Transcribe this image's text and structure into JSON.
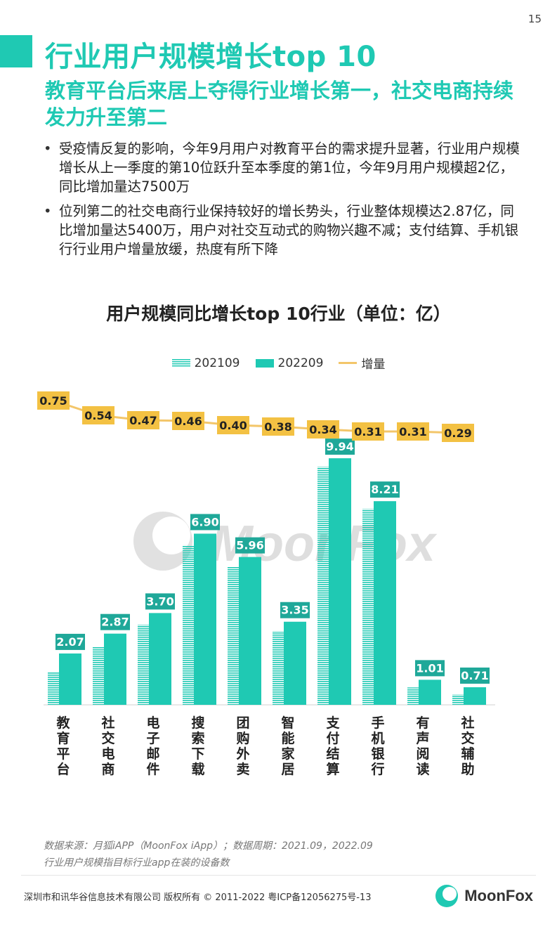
{
  "page_number": "15",
  "title": "行业用户规模增长top 10",
  "subtitle": "教育平台后来居上夺得行业增长第一，社交电商持续发力升至第二",
  "bullets": [
    "受疫情反复的影响，今年9月用户对教育平台的需求提升显著，行业用户规模增长从上一季度的第10位跃升至本季度的第1位，今年9月用户规模超2亿，同比增加量达7500万",
    "位列第二的社交电商行业保持较好的增长势头，行业整体规模达2.87亿，同比增加量达5400万，用户对社交互动式的购物兴趣不减；支付结算、手机银行行业用户增量放缓，热度有所下降"
  ],
  "watermark": "MoonFox",
  "chart_data": {
    "type": "bar",
    "title": "用户规模同比增长top 10行业（单位：亿）",
    "categories": [
      "教育平台",
      "社交电商",
      "电子邮件",
      "搜索下载",
      "团购外卖",
      "智能家居",
      "支付结算",
      "手机银行",
      "有声阅读",
      "社交辅助"
    ],
    "series": [
      {
        "name": "202109",
        "kind": "bar",
        "style": "striped",
        "values": [
          1.32,
          2.33,
          3.23,
          6.44,
          5.56,
          2.97,
          9.6,
          7.9,
          0.7,
          0.42
        ]
      },
      {
        "name": "202209",
        "kind": "bar",
        "style": "solid",
        "values": [
          2.07,
          2.87,
          3.7,
          6.9,
          5.96,
          3.35,
          9.94,
          8.21,
          1.01,
          0.71
        ]
      },
      {
        "name": "增量",
        "kind": "line",
        "values": [
          0.75,
          0.54,
          0.47,
          0.46,
          0.4,
          0.38,
          0.34,
          0.31,
          0.31,
          0.29
        ]
      }
    ],
    "colors": {
      "bar": "#1fc9b3",
      "line": "#f3c66a",
      "label_bg": "#1fa899",
      "line_label_bg": "#f3c143"
    }
  },
  "footnote": {
    "line1": "数据来源：月狐iAPP（MoonFox iApp）；数据周期：2021.09，2022.09",
    "line2": "行业用户规模指目标行业app在装的设备数"
  },
  "footer": {
    "copyright": "深圳市和讯华谷信息技术有限公司 版权所有 © 2011-2022 粤ICP备12056275号-13",
    "logo_text": "MoonFox"
  }
}
